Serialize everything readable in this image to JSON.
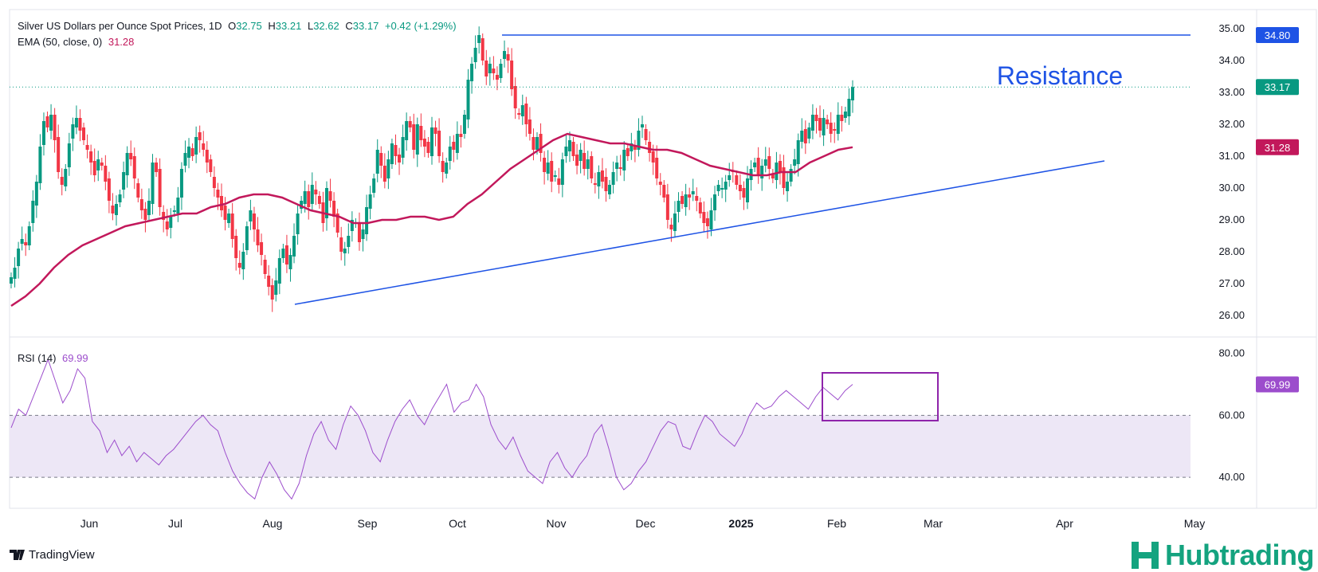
{
  "header": {
    "title": "Silver US Dollars per Ounce Spot Prices, 1D",
    "ohlc": {
      "o_label": "O",
      "o": "32.75",
      "h_label": "H",
      "h": "33.21",
      "l_label": "L",
      "l": "32.62",
      "c_label": "C",
      "c": "33.17",
      "change": "+0.42 (+1.29%)"
    },
    "ema_label": "EMA (50, close, 0)",
    "ema_value": "31.28",
    "rsi_label": "RSI (14)",
    "rsi_value": "69.99"
  },
  "colors": {
    "up": "#089981",
    "down": "#f23645",
    "ema": "#c2185b",
    "resistance": "#1e53e5",
    "rsi": "#9c4dcc",
    "rsi_band": "#ede7f6",
    "brand_green": "#14a37f"
  },
  "chart_data": [
    {
      "type": "candlestick",
      "title": "Silver US Dollars per Ounce Spot Prices, 1D",
      "ylim": [
        25.6,
        35.4
      ],
      "y_ticks": [
        "26.00",
        "27.00",
        "28.00",
        "29.00",
        "30.00",
        "31.00",
        "32.00",
        "33.00",
        "34.00",
        "35.00"
      ],
      "x_ticks": [
        "Jun",
        "Jul",
        "Aug",
        "Sep",
        "Oct",
        "Nov",
        "Dec",
        "2025",
        "Feb",
        "Mar",
        "Apr",
        "May"
      ],
      "price_labels": {
        "resistance": "34.80",
        "last": "33.17",
        "ema": "31.28"
      },
      "annotation": "Resistance",
      "resistance_level": 34.8,
      "trendline": [
        [
          26.35,
          30.85
        ]
      ],
      "series": [
        {
          "name": "Close",
          "values": [
            27.2,
            27.5,
            28.1,
            28.4,
            28.2,
            28.8,
            29.6,
            30.2,
            31.3,
            32.1,
            31.9,
            32.3,
            31.5,
            30.5,
            30.1,
            30.6,
            31.4,
            32.0,
            32.2,
            31.8,
            31.5,
            31.2,
            30.8,
            30.4,
            30.9,
            30.7,
            30.2,
            29.6,
            29.2,
            29.5,
            29.8,
            30.5,
            31.1,
            30.9,
            30.3,
            29.7,
            29.3,
            29.0,
            29.6,
            30.8,
            30.5,
            29.4,
            29.0,
            28.7,
            29.1,
            29.3,
            29.7,
            30.6,
            31.1,
            31.3,
            31.0,
            31.6,
            31.5,
            31.2,
            30.8,
            30.5,
            30.0,
            29.7,
            29.3,
            29.0,
            29.2,
            28.4,
            27.8,
            27.5,
            28.0,
            28.8,
            29.3,
            28.7,
            28.2,
            27.9,
            27.3,
            26.9,
            26.5,
            27.1,
            27.8,
            28.1,
            27.6,
            27.9,
            28.5,
            29.2,
            29.6,
            29.9,
            29.4,
            30.1,
            29.8,
            29.5,
            28.9,
            30.0,
            29.6,
            29.1,
            28.6,
            28.0,
            28.1,
            28.5,
            29.0,
            28.9,
            28.3,
            28.7,
            29.4,
            29.8,
            30.3,
            31.2,
            30.7,
            30.2,
            30.9,
            31.4,
            31.0,
            30.8,
            31.6,
            32.1,
            31.9,
            31.2,
            32.0,
            31.5,
            31.3,
            31.1,
            31.9,
            31.7,
            31.0,
            30.5,
            30.8,
            31.3,
            31.2,
            31.7,
            31.6,
            32.3,
            33.4,
            33.9,
            34.4,
            34.8,
            34.0,
            33.5,
            33.9,
            33.6,
            33.4,
            33.9,
            34.3,
            34.0,
            33.1,
            32.5,
            32.3,
            32.6,
            32.0,
            31.7,
            31.2,
            31.6,
            31.1,
            30.5,
            30.8,
            30.2,
            30.4,
            30.1,
            30.9,
            31.3,
            31.5,
            31.0,
            30.7,
            31.2,
            30.6,
            30.9,
            30.3,
            30.1,
            30.5,
            30.2,
            29.9,
            30.1,
            30.5,
            30.8,
            30.6,
            31.2,
            31.0,
            31.4,
            31.2,
            31.8,
            32.0,
            31.5,
            31.1,
            30.8,
            30.3,
            30.1,
            29.7,
            29.0,
            28.7,
            29.2,
            29.6,
            29.5,
            29.8,
            29.7,
            29.9,
            29.6,
            29.2,
            28.9,
            28.8,
            29.3,
            29.8,
            30.1,
            30.0,
            30.2,
            30.4,
            30.5,
            30.1,
            29.9,
            29.7,
            30.3,
            30.6,
            30.8,
            30.4,
            30.7,
            30.9,
            30.6,
            30.3,
            30.8,
            30.5,
            30.0,
            30.2,
            30.6,
            30.9,
            31.5,
            31.8,
            31.4,
            31.9,
            32.3,
            32.1,
            31.8,
            32.2,
            32.0,
            31.7,
            31.8,
            32.3,
            32.1,
            32.4,
            32.8,
            33.17
          ]
        },
        {
          "name": "EMA (50, close, 0)",
          "values": [
            26.3,
            26.6,
            27.0,
            27.5,
            27.9,
            28.2,
            28.4,
            28.6,
            28.8,
            28.9,
            29.0,
            29.1,
            29.2,
            29.2,
            29.4,
            29.5,
            29.7,
            29.8,
            29.8,
            29.7,
            29.5,
            29.3,
            29.2,
            29.1,
            28.9,
            28.9,
            29.0,
            29.0,
            29.1,
            29.1,
            29.0,
            29.1,
            29.5,
            29.8,
            30.2,
            30.6,
            30.9,
            31.2,
            31.5,
            31.7,
            31.6,
            31.5,
            31.4,
            31.4,
            31.3,
            31.2,
            31.2,
            31.1,
            30.9,
            30.7,
            30.6,
            30.5,
            30.4,
            30.4,
            30.5,
            30.5,
            30.8,
            31.0,
            31.2,
            31.28
          ]
        },
        {
          "name": "RSI (14)",
          "values": [
            56,
            62,
            60,
            66,
            72,
            78,
            71,
            64,
            68,
            75,
            72,
            58,
            55,
            48,
            52,
            47,
            50,
            45,
            48,
            46,
            44,
            47,
            49,
            52,
            55,
            58,
            60,
            57,
            55,
            48,
            42,
            38,
            35,
            33,
            40,
            45,
            41,
            36,
            33,
            38,
            47,
            54,
            58,
            52,
            49,
            57,
            63,
            60,
            55,
            48,
            45,
            52,
            58,
            62,
            65,
            60,
            57,
            62,
            66,
            70,
            61,
            64,
            65,
            70,
            66,
            57,
            52,
            49,
            53,
            47,
            42,
            40,
            38,
            45,
            48,
            43,
            40,
            44,
            47,
            54,
            57,
            49,
            40,
            36,
            38,
            42,
            45,
            50,
            55,
            58,
            57,
            50,
            49,
            55,
            60,
            58,
            54,
            52,
            50,
            54,
            60,
            64,
            62,
            63,
            66,
            68,
            66,
            64,
            62,
            66,
            69,
            67,
            65,
            68,
            69.99
          ]
        }
      ]
    },
    {
      "type": "line",
      "title": "RSI (14)",
      "ylim": [
        30,
        84
      ],
      "y_ticks": [
        "40.00",
        "60.00",
        "80.00"
      ],
      "band": [
        40,
        60
      ],
      "last": "69.99"
    }
  ],
  "footer": {
    "tradingview": "TradingView",
    "hubtrading": "Hubtrading"
  }
}
